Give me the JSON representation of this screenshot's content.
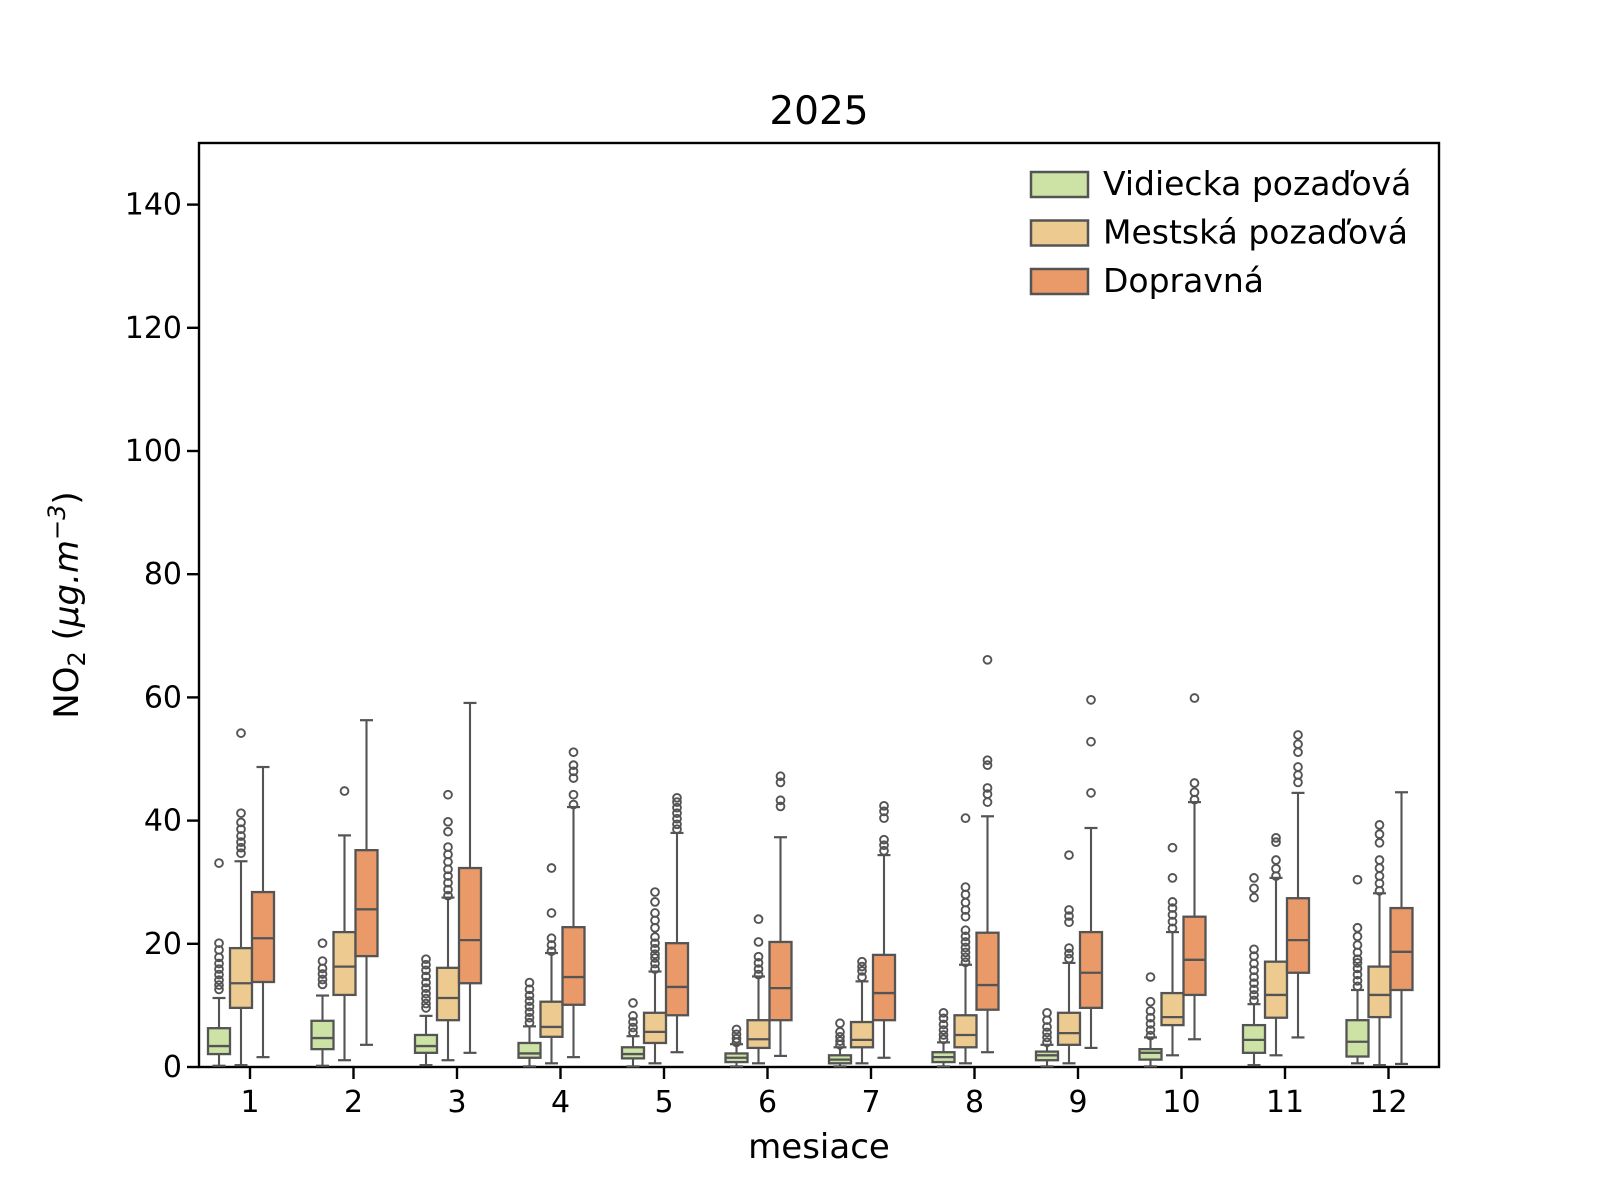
{
  "page": {
    "background": "#ffffff"
  },
  "chart_data": {
    "type": "boxplot",
    "title": "2025",
    "xlabel": "mesiace",
    "ylabel": "NO2 (µg.m-3)",
    "ylabel_parts": {
      "base": "NO",
      "sub": "2",
      "open": "  (",
      "italic": "µg.m",
      "sup": "−3",
      "close": ")"
    },
    "categories": [
      "1",
      "2",
      "3",
      "4",
      "5",
      "6",
      "7",
      "8",
      "9",
      "10",
      "11",
      "12"
    ],
    "ylim": [
      0,
      150
    ],
    "yticks": [
      0,
      20,
      40,
      60,
      80,
      100,
      120,
      140
    ],
    "grid": false,
    "legend_position": "upper right",
    "box_format": [
      "whislo",
      "q1",
      "med",
      "q3",
      "whishi",
      "fliers"
    ],
    "axis_color": "#000000",
    "element_edge_color": "#545454",
    "series": [
      {
        "name": "Vidiecka pozaďová",
        "color": "#cde3a6",
        "boxes": [
          [
            0.2,
            2.1,
            3.4,
            6.3,
            11.2,
            [
              12.6,
              13.3,
              14.1,
              15,
              15.9,
              16.8,
              17.8,
              19,
              20.1,
              33.1
            ]
          ],
          [
            0.2,
            2.9,
            4.7,
            7.5,
            11.6,
            [
              13.4,
              14.2,
              15.1,
              16,
              17.2,
              20.1
            ]
          ],
          [
            0.3,
            2.3,
            3.4,
            5.2,
            8.3,
            [
              9.6,
              10.3,
              11.1,
              11.9,
              12.8,
              13.7,
              14.7,
              15.7,
              16.6,
              17.5
            ]
          ],
          [
            0.1,
            1.5,
            2.2,
            3.9,
            6.6,
            [
              7.2,
              8,
              8.9,
              9.8,
              10.7,
              11.6,
              12.6,
              13.7
            ]
          ],
          [
            0.1,
            1.4,
            2.1,
            3.2,
            5,
            [
              5.6,
              6.4,
              7.3,
              8.3,
              10.4
            ]
          ],
          [
            0.1,
            0.8,
            1.5,
            2.2,
            3.7,
            [
              4,
              4.6,
              5.3,
              6.1
            ]
          ],
          [
            0.1,
            0.6,
            1.2,
            1.9,
            3.2,
            [
              3.6,
              4.2,
              4.9,
              5.7,
              7.1
            ]
          ],
          [
            0.1,
            0.8,
            1.6,
            2.4,
            4,
            [
              4.5,
              5.2,
              6,
              6.9,
              7.9,
              8.8
            ]
          ],
          [
            0.1,
            1.1,
            1.9,
            2.5,
            3.6,
            [
              4,
              4.8,
              5.6,
              6.5,
              7.6,
              8.8
            ]
          ],
          [
            0.1,
            1.2,
            2.3,
            2.9,
            4.8,
            [
              5.1,
              6,
              7,
              8,
              9.1,
              10.6,
              14.6
            ]
          ],
          [
            0.3,
            2.3,
            4.4,
            6.8,
            10.2,
            [
              10.8,
              11.7,
              12.6,
              13.6,
              14.6,
              15.7,
              16.8,
              18,
              19.1,
              27.5,
              29,
              30.7
            ]
          ],
          [
            0.6,
            1.7,
            4.1,
            7.6,
            12.5,
            [
              13.1,
              14,
              15,
              16,
              16.9,
              17.5,
              18.6,
              19.8,
              21.2,
              22.6,
              30.4
            ]
          ]
        ]
      },
      {
        "name": "Mestská pozaďová",
        "color": "#edca8f",
        "boxes": [
          [
            0.3,
            9.6,
            13.6,
            19.3,
            33.4,
            [
              34.7,
              35.6,
              36.5,
              37.5,
              38.6,
              39.7,
              41.2,
              54.2
            ]
          ],
          [
            1.1,
            11.7,
            16.3,
            21.9,
            37.6,
            [
              44.8
            ]
          ],
          [
            1.1,
            7.6,
            11.2,
            16.1,
            27.5,
            [
              27.8,
              28.8,
              29.9,
              31,
              32.1,
              33.3,
              34.5,
              35.7,
              38.2,
              39.8,
              44.2
            ]
          ],
          [
            0.6,
            4.9,
            6.5,
            10.6,
            18.5,
            [
              18.8,
              19.8,
              20.9,
              25,
              32.3
            ]
          ],
          [
            0.6,
            3.9,
            5.7,
            8.8,
            15.5,
            [
              15.9,
              16.8,
              17.7,
              18.3,
              19.2,
              20.1,
              21.1,
              22.6,
              23.8,
              25,
              26.8,
              28.4
            ]
          ],
          [
            0.6,
            3.1,
            4.5,
            7.6,
            14.7,
            [
              15,
              15.9,
              16.9,
              17.9,
              20.3,
              24
            ]
          ],
          [
            0.6,
            3.2,
            4.4,
            7.3,
            13.9,
            [
              14.6,
              15.6,
              16.3,
              17.1
            ]
          ],
          [
            0.6,
            3.2,
            5.2,
            8.4,
            16.6,
            [
              17,
              17.8,
              18.6,
              19.4,
              20.3,
              21.2,
              22.2,
              24.4,
              25.5,
              26.7,
              28,
              29.2,
              40.4
            ]
          ],
          [
            0.6,
            3.6,
            5.5,
            8.8,
            16.9,
            [
              17.6,
              18.4,
              19.3,
              23.5,
              24.5,
              25.5,
              34.4
            ]
          ],
          [
            1.9,
            6.8,
            8.1,
            12,
            21.9,
            [
              22.5,
              23.6,
              24.7,
              25.8,
              26.8,
              30.7,
              35.6
            ]
          ],
          [
            1.9,
            8,
            11.7,
            17.1,
            30.7,
            [
              31,
              32.2,
              33.6,
              36.5,
              37.2
            ]
          ],
          [
            0.3,
            8.1,
            11.7,
            16.3,
            28.2,
            [
              28.6,
              29.8,
              31,
              32.3,
              33.6,
              36.4,
              37.8,
              39.3
            ]
          ]
        ]
      },
      {
        "name": "Dopravná",
        "color": "#e99a68",
        "boxes": [
          [
            1.6,
            13.8,
            20.9,
            28.4,
            48.7,
            []
          ],
          [
            3.6,
            18,
            25.6,
            35.2,
            56.3,
            []
          ],
          [
            2.3,
            13.6,
            20.6,
            32.3,
            59.1,
            []
          ],
          [
            1.6,
            10.1,
            14.6,
            22.7,
            42.2,
            [
              42.6,
              44.2,
              46.9,
              48,
              49,
              51.1
            ]
          ],
          [
            2.4,
            8.4,
            13,
            20.1,
            38,
            [
              38.6,
              39.4,
              40.3,
              41.2,
              42.1,
              43,
              43.7
            ]
          ],
          [
            1.8,
            7.6,
            12.8,
            20.3,
            37.3,
            [
              42.3,
              43.3,
              46.2,
              47.2
            ]
          ],
          [
            1.5,
            7.6,
            12,
            18.2,
            34.4,
            [
              35.1,
              36,
              36.9,
              40.4,
              41.5,
              42.4
            ]
          ],
          [
            2.4,
            9.3,
            13.3,
            21.8,
            40.7,
            [
              43,
              44.3,
              45.3,
              49,
              49.8,
              66.1
            ]
          ],
          [
            3.1,
            9.6,
            15.3,
            21.9,
            38.8,
            [
              44.5,
              52.8,
              59.6
            ]
          ],
          [
            4.5,
            11.7,
            17.4,
            24.4,
            43,
            [
              43.4,
              44.6,
              46.1,
              59.9
            ]
          ],
          [
            4.8,
            15.3,
            20.6,
            27.4,
            44.5,
            [
              46.2,
              47.4,
              48.7,
              51.1,
              52.4,
              53.9
            ]
          ],
          [
            0.5,
            12.5,
            18.7,
            25.8,
            44.6,
            []
          ]
        ]
      }
    ]
  }
}
